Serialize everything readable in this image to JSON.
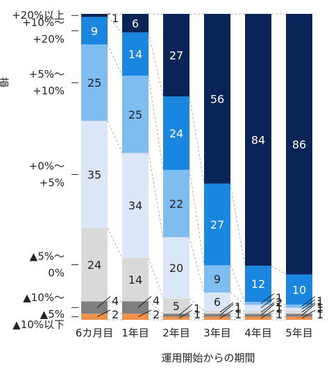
{
  "chart_data": {
    "type": "bar",
    "stacked": true,
    "percent": true,
    "ylabel": "損益状況毎のお客様の割合（％）",
    "xlabel": "運用開始からの期間",
    "categories": [
      "6カ月目",
      "1年目",
      "2年目",
      "3年目",
      "4年目",
      "5年目"
    ],
    "series": [
      {
        "name": "▲10%以下",
        "color": "#f0914a",
        "values": [
          2,
          2,
          1,
          1,
          1,
          1
        ]
      },
      {
        "name": "▲10%〜▲5%",
        "color": "#7f7f7f",
        "values": [
          4,
          4,
          1,
          1,
          1,
          1
        ]
      },
      {
        "name": "▲5%〜0%",
        "color": "#d9d9d9",
        "values": [
          24,
          14,
          5,
          1,
          1,
          1
        ]
      },
      {
        "name": "+0%〜+5%",
        "color": "#dbe7f8",
        "values": [
          35,
          34,
          20,
          6,
          2,
          1
        ]
      },
      {
        "name": "+5%〜+10%",
        "color": "#7fbdf0",
        "values": [
          25,
          25,
          22,
          9,
          1,
          1
        ]
      },
      {
        "name": "+10%〜+20%",
        "color": "#1a86e0",
        "values": [
          9,
          14,
          24,
          27,
          12,
          10
        ]
      },
      {
        "name": "+20%以上",
        "color": "#0b2457",
        "values": [
          1,
          6,
          27,
          56,
          84,
          86
        ]
      }
    ],
    "side_labels": [
      {
        "series": 6,
        "lines": [
          "+20%以上"
        ]
      },
      {
        "series": 5,
        "lines": [
          "+10%〜",
          "+20%"
        ]
      },
      {
        "series": 4,
        "lines": [
          "+5%〜",
          "+10%"
        ]
      },
      {
        "series": 3,
        "lines": [
          "+0%〜",
          "+5%"
        ]
      },
      {
        "series": 2,
        "lines": [
          "▲5%〜",
          "0%"
        ]
      },
      {
        "series": 1,
        "lines": [
          "▲10%〜",
          "▲5%"
        ]
      },
      {
        "series": 0,
        "lines": [
          "▲10%以下"
        ]
      }
    ]
  }
}
